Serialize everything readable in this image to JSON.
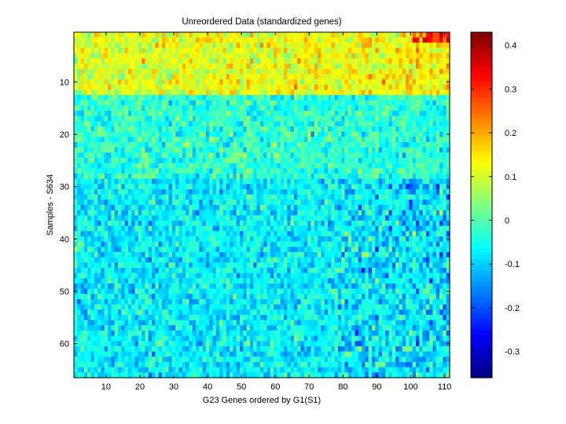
{
  "chart_data": {
    "type": "heatmap",
    "title": "Unreordered Data (standardized genes)",
    "xlabel": "G23 Genes ordered by G1(S1)",
    "ylabel": "Samples - S634",
    "n_cols": 111,
    "n_rows": 66,
    "xlim": [
      0.5,
      111.5
    ],
    "ylim": [
      0.5,
      66.5
    ],
    "x_ticks": [
      10,
      20,
      30,
      40,
      50,
      60,
      70,
      80,
      90,
      100,
      110
    ],
    "y_ticks": [
      10,
      20,
      30,
      40,
      50,
      60
    ],
    "colormap": "jet",
    "color_range": [
      -0.36,
      0.43
    ],
    "colorbar_ticks": [
      -0.3,
      -0.2,
      -0.1,
      0,
      0.1,
      0.2,
      0.3,
      0.4
    ],
    "colorbar_tick_labels": [
      "-0.3",
      "-0.2",
      "-0.1",
      "0",
      "0.1",
      "0.2",
      "0.3",
      "0.4"
    ],
    "row_block_means": [
      {
        "rows": [
          1,
          12
        ],
        "mean": 0.1
      },
      {
        "rows": [
          13,
          28
        ],
        "mean": -0.03
      },
      {
        "rows": [
          29,
          66
        ],
        "mean": -0.07
      }
    ]
  }
}
